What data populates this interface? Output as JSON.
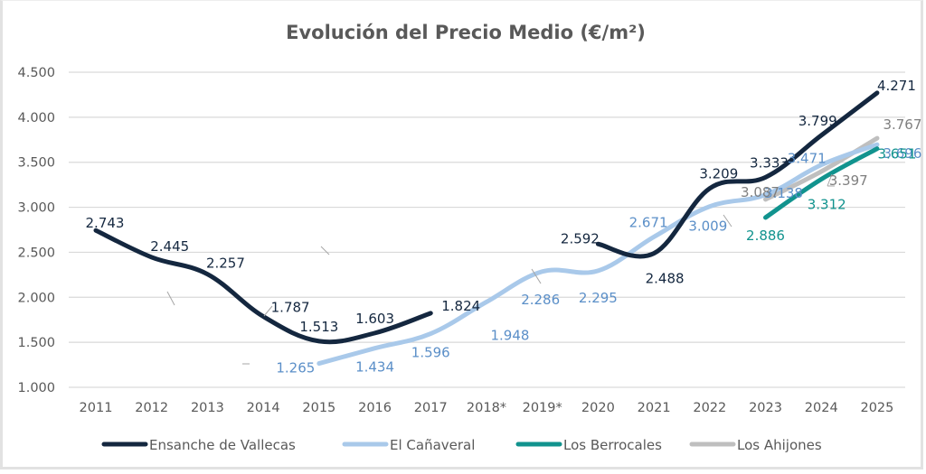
{
  "chart_data": {
    "type": "line",
    "title": "Evolución del Precio Medio (€/m²)",
    "xlabel": "",
    "ylabel": "",
    "categories": [
      "2011",
      "2012",
      "2013",
      "2014",
      "2015",
      "2016",
      "2017",
      "2018*",
      "2019*",
      "2020",
      "2021",
      "2022",
      "2023",
      "2024",
      "2025"
    ],
    "ylim": [
      1000,
      4500
    ],
    "yticks": [
      1000,
      1500,
      2000,
      2500,
      3000,
      3500,
      4000,
      4500
    ],
    "ytick_labels": [
      "1.000",
      "1.500",
      "2.000",
      "2.500",
      "3.000",
      "3.500",
      "4.000",
      "4.500"
    ],
    "grid": true,
    "legend_position": "bottom",
    "series": [
      {
        "name": "Ensanche de Vallecas",
        "color": "#14273f",
        "label_color": "#14273f",
        "segments": [
          {
            "x": [
              "2011",
              "2012",
              "2013",
              "2014",
              "2015",
              "2016",
              "2017"
            ],
            "values": [
              2743,
              2445,
              2257,
              1787,
              1513,
              1603,
              1824
            ]
          },
          {
            "x": [
              "2020",
              "2021",
              "2022",
              "2023",
              "2024",
              "2025"
            ],
            "values": [
              2592,
              2488,
              3209,
              3333,
              3799,
              4271
            ]
          }
        ],
        "labels": [
          "2.743",
          "2.445",
          "2.257",
          "1.787",
          "1.513",
          "1.603",
          "1.824",
          "2.592",
          "2.488",
          "3.209",
          "3.333",
          "3.799",
          "4.271"
        ]
      },
      {
        "name": "El Cañaveral",
        "color": "#a9c9ea",
        "label_color": "#5b8fc8",
        "segments": [
          {
            "x": [
              "2015",
              "2016",
              "2017",
              "2018*",
              "2019*",
              "2020",
              "2021",
              "2022",
              "2023",
              "2024",
              "2025"
            ],
            "values": [
              1265,
              1434,
              1596,
              1948,
              2286,
              2295,
              2671,
              3009,
              3138,
              3471,
              3696
            ]
          }
        ],
        "labels": [
          "1.265",
          "1.434",
          "1.596",
          "1.948",
          "2.286",
          "2.295",
          "2.671",
          "3.009",
          "3.138",
          "3.471",
          "3.696"
        ]
      },
      {
        "name": "Los Berrocales",
        "color": "#11938e",
        "label_color": "#11938e",
        "segments": [
          {
            "x": [
              "2023",
              "2024",
              "2025"
            ],
            "values": [
              2886,
              3312,
              3651
            ]
          }
        ],
        "labels": [
          "2.886",
          "3.312",
          "3.651"
        ]
      },
      {
        "name": "Los Ahijones",
        "color": "#bfbfbf",
        "label_color": "#7f7f7f",
        "segments": [
          {
            "x": [
              "2023",
              "2024",
              "2025"
            ],
            "values": [
              3087,
              3397,
              3767
            ]
          }
        ],
        "labels": [
          "3.087",
          "3.397",
          "3.767"
        ]
      }
    ]
  }
}
